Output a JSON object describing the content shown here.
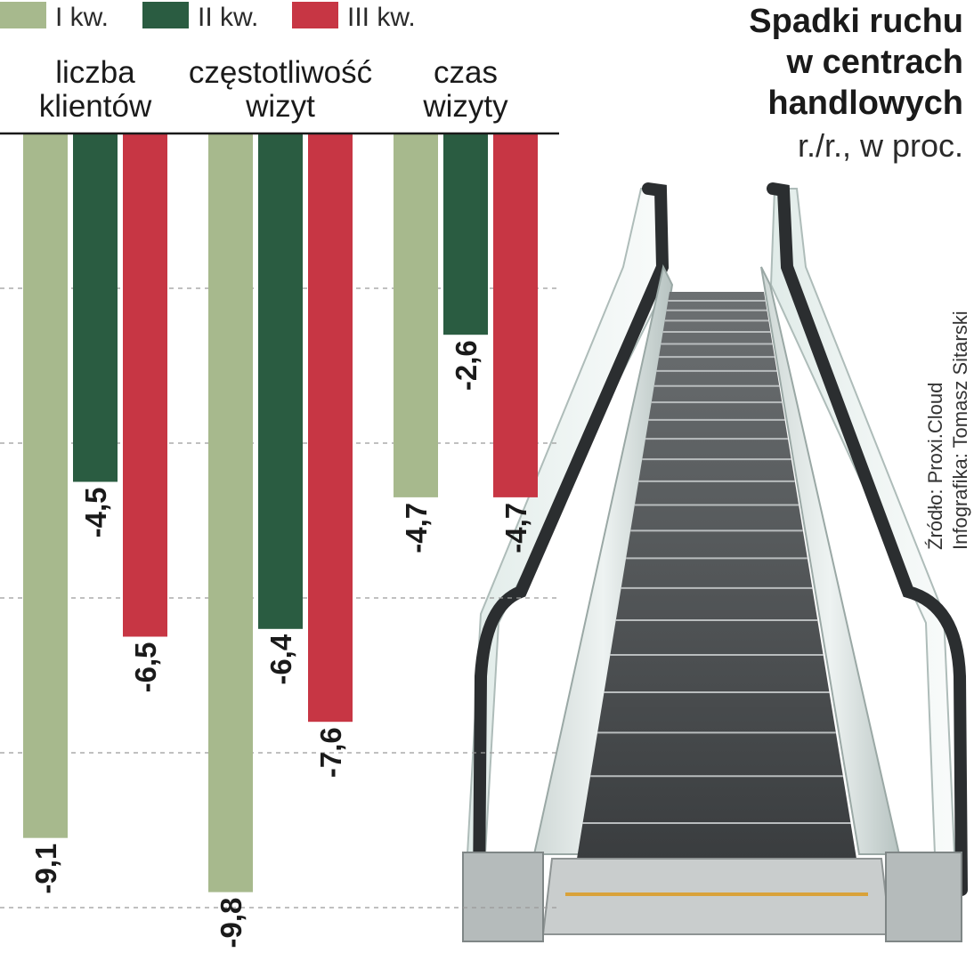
{
  "title_lines": [
    "Spadki ruchu",
    "w centrach",
    "handlowych"
  ],
  "subtitle": "r./r., w proc.",
  "source": "Źródło: Proxi.Cloud",
  "infographic": "Infografika: Tomasz Sitarski",
  "legend": [
    {
      "label": "I kw.",
      "color": "#a7b98d"
    },
    {
      "label": "II kw.",
      "color": "#2a5c41"
    },
    {
      "label": "III kw.",
      "color": "#c73644"
    }
  ],
  "chart_data": {
    "type": "bar",
    "orientation": "vertical-downward",
    "categories": [
      {
        "lines": [
          "liczba",
          "klientów"
        ]
      },
      {
        "lines": [
          "częstotliwość",
          "wizyt"
        ]
      },
      {
        "lines": [
          "czas",
          "wizyty"
        ]
      }
    ],
    "series": [
      {
        "name": "I kw.",
        "color": "#a7b98d",
        "values": [
          -9.1,
          -9.8,
          -4.7
        ],
        "labels": [
          "-9,1",
          "-9,8",
          "-4,7"
        ]
      },
      {
        "name": "II kw.",
        "color": "#2a5c41",
        "values": [
          -4.5,
          -6.4,
          -2.6
        ],
        "labels": [
          "-4,5",
          "-6,4",
          "-2,6"
        ]
      },
      {
        "name": "III kw.",
        "color": "#c73644",
        "values": [
          -6.5,
          -7.6,
          -4.7
        ],
        "labels": [
          "-6,5",
          "-7,6",
          "-4,7"
        ]
      }
    ],
    "ylim": [
      -10,
      0
    ],
    "gridlines": [
      -2,
      -4,
      -6,
      -8,
      -10
    ],
    "grid": true,
    "legend_position": "top-left"
  },
  "illustration": "escalator"
}
